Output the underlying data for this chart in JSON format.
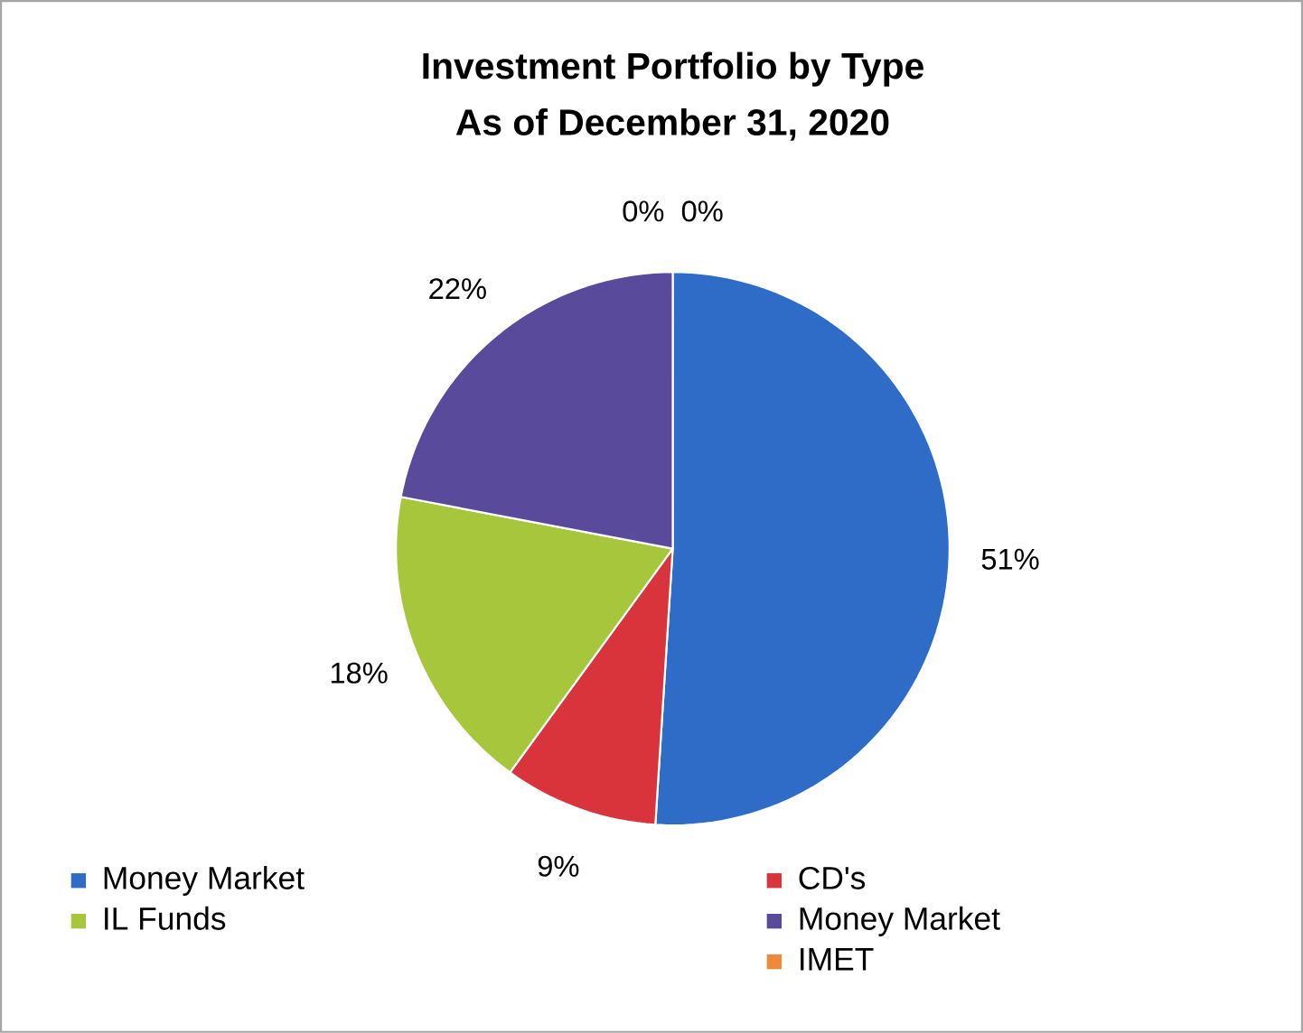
{
  "chart_data": {
    "type": "pie",
    "title": "Investment Portfolio by Type",
    "subtitle": "As of December 31, 2020",
    "categories": [
      "Money Market",
      "CD's",
      "IL Funds",
      "Money Market",
      null,
      "IMET"
    ],
    "values": [
      51,
      9,
      18,
      22,
      0,
      0
    ],
    "value_labels": [
      "51%",
      "9%",
      "18%",
      "22%",
      "0%",
      "0%"
    ],
    "colors": [
      "#2f6cc8",
      "#d9343c",
      "#a6c63c",
      "#5a4a9c",
      "#1ea2e0",
      "#f08a3a"
    ],
    "legend": "bottom"
  }
}
